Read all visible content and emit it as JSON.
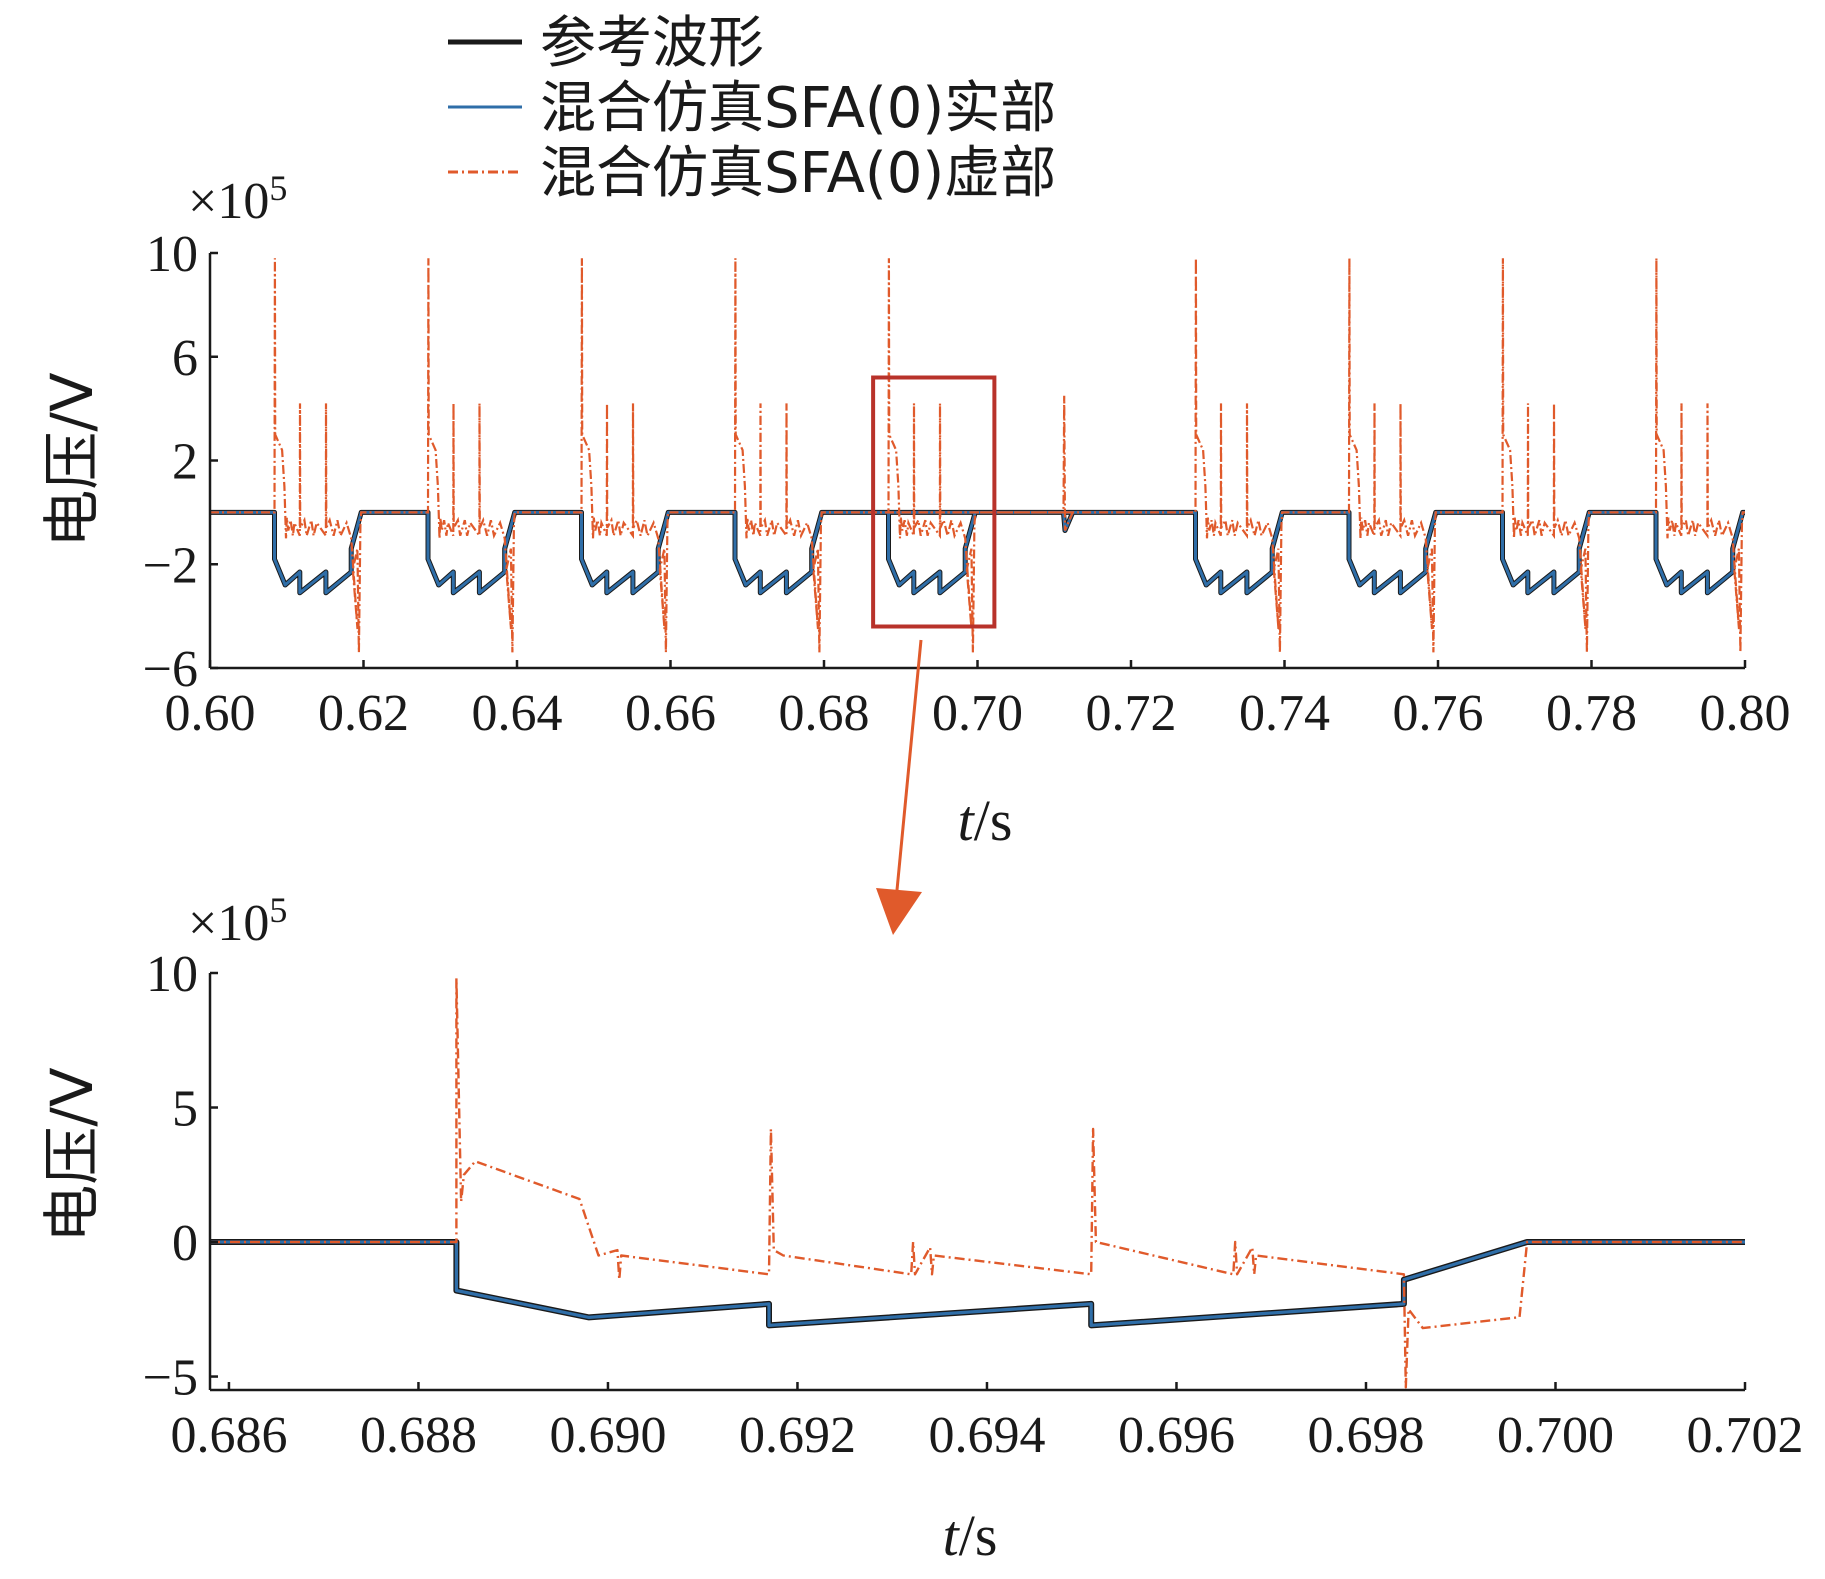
{
  "colors": {
    "reference": "#1a1a1a",
    "real": "#2f6ea8",
    "imag": "#e05a2b",
    "highlight": "#b8322a"
  },
  "legend": {
    "items": [
      {
        "label": "参考波形",
        "series": "reference",
        "style": "solid-thick"
      },
      {
        "label": "混合仿真SFA(0)实部",
        "series": "real",
        "style": "solid"
      },
      {
        "label": "混合仿真SFA(0)虚部",
        "series": "imag",
        "style": "dash-dot"
      }
    ]
  },
  "chart_data": [
    {
      "type": "line",
      "id": "top",
      "xlabel_italic": "t",
      "xlabel_rest": "/s",
      "ylabel": "电压/V",
      "multiplier_prefix": "×10",
      "multiplier_exp": "5",
      "xlim": [
        0.6,
        0.8
      ],
      "ylim": [
        -6,
        10
      ],
      "xticks": [
        0.6,
        0.62,
        0.64,
        0.66,
        0.68,
        0.7,
        0.72,
        0.74,
        0.76,
        0.78,
        0.8
      ],
      "xtick_labels": [
        "0.60",
        "0.62",
        "0.64",
        "0.66",
        "0.68",
        "0.70",
        "0.72",
        "0.74",
        "0.76",
        "0.78",
        "0.80"
      ],
      "yticks": [
        -6,
        -2,
        2,
        6,
        10
      ],
      "ytick_labels": [
        "−6",
        "−2",
        "2",
        "6",
        "10"
      ],
      "pulse_starts": [
        0.6084,
        0.6284,
        0.6484,
        0.6684,
        0.6884,
        0.7284,
        0.7484,
        0.7684,
        0.7884
      ],
      "glitch_time": 0.7112,
      "highlight_box": {
        "x": [
          0.6864,
          0.7022
        ],
        "y": [
          -4.4,
          5.2
        ]
      }
    },
    {
      "type": "line",
      "id": "bottom",
      "xlabel_italic": "t",
      "xlabel_rest": "/s",
      "ylabel": "电压/V",
      "multiplier_prefix": "×10",
      "multiplier_exp": "5",
      "xlim": [
        0.6858,
        0.702
      ],
      "ylim": [
        -5.5,
        10
      ],
      "xticks": [
        0.686,
        0.688,
        0.69,
        0.692,
        0.694,
        0.696,
        0.698,
        0.7,
        0.702
      ],
      "xtick_labels": [
        "0.686",
        "0.688",
        "0.690",
        "0.692",
        "0.694",
        "0.696",
        "0.698",
        "0.700",
        "0.702"
      ],
      "yticks": [
        -5,
        0,
        5,
        10
      ],
      "ytick_labels": [
        "−5",
        "0",
        "5",
        "10"
      ],
      "series": [
        {
          "name": "参考波形",
          "key": "reference",
          "x": [
            0.6858,
            0.6884,
            0.6884,
            0.6898,
            0.6917,
            0.6917,
            0.6951,
            0.6951,
            0.6984,
            0.6984,
            0.6997,
            0.702
          ],
          "y": [
            0,
            0,
            -1.8,
            -2.8,
            -2.3,
            -3.1,
            -2.3,
            -3.1,
            -2.3,
            -1.4,
            0,
            0
          ]
        },
        {
          "name": "混合仿真SFA(0)实部",
          "key": "real",
          "x": [
            0.6858,
            0.6884,
            0.6884,
            0.6898,
            0.6917,
            0.6917,
            0.6951,
            0.6951,
            0.6984,
            0.6984,
            0.6997,
            0.702
          ],
          "y": [
            0,
            0,
            -1.8,
            -2.8,
            -2.3,
            -3.1,
            -2.3,
            -3.1,
            -2.3,
            -1.4,
            0,
            0
          ]
        },
        {
          "name": "混合仿真SFA(0)虚部",
          "key": "imag",
          "x": [
            0.6858,
            0.6884,
            0.6884,
            0.68845,
            0.68848,
            0.6886,
            0.6897,
            0.6899,
            0.6901,
            0.69012,
            0.69014,
            0.6917,
            0.69172,
            0.69175,
            0.69185,
            0.6932,
            0.69322,
            0.69324,
            0.6934,
            0.69342,
            0.69344,
            0.6951,
            0.69512,
            0.69515,
            0.6966,
            0.69662,
            0.69664,
            0.6968,
            0.69682,
            0.69684,
            0.6984,
            0.69842,
            0.69845,
            0.6986,
            0.6996,
            0.69962,
            0.6997,
            0.702
          ],
          "y": [
            0,
            0,
            9.8,
            1.5,
            2.5,
            3.0,
            1.6,
            -0.5,
            -0.3,
            -1.4,
            -0.5,
            -1.2,
            4.2,
            -0.3,
            -0.5,
            -1.2,
            0,
            -1.2,
            -0.2,
            -1.2,
            -0.5,
            -1.2,
            4.2,
            0,
            -1.2,
            0,
            -1.2,
            -0.2,
            -1.2,
            -0.5,
            -1.2,
            -5.4,
            -2.5,
            -3.2,
            -2.8,
            -2.8,
            0,
            0
          ]
        }
      ]
    }
  ]
}
